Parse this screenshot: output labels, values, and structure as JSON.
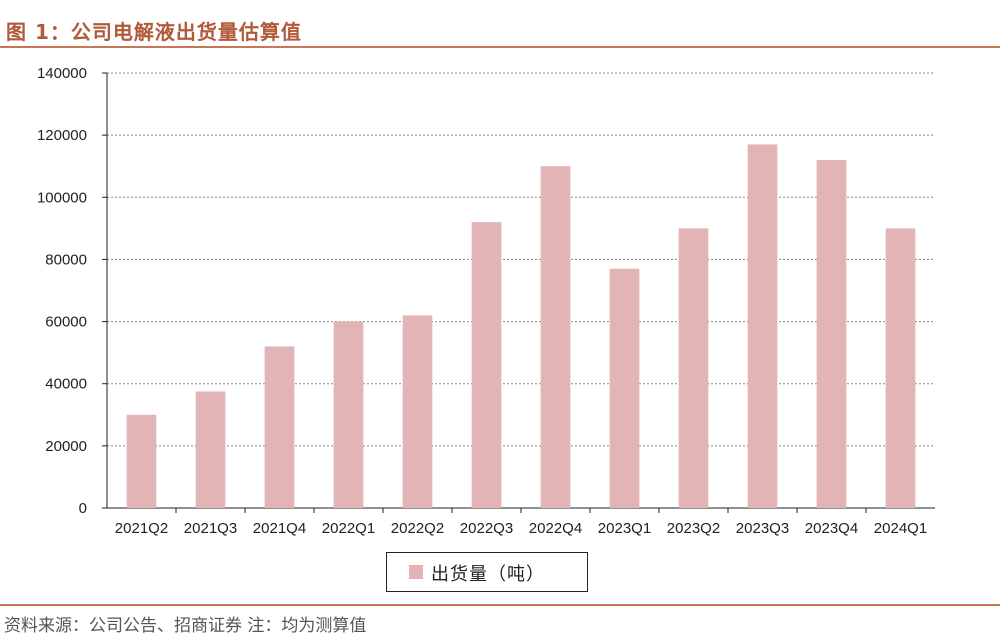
{
  "title": "图 1：公司电解液出货量估算值",
  "source": "资料来源：公司公告、招商证券 注：均为测算值",
  "colors": {
    "bar": "#e2b4b6",
    "accent": "#c9755a",
    "grid": "#888888"
  },
  "chart_data": {
    "type": "bar",
    "categories": [
      "2021Q2",
      "2021Q3",
      "2021Q4",
      "2022Q1",
      "2022Q2",
      "2022Q3",
      "2022Q4",
      "2023Q1",
      "2023Q2",
      "2023Q3",
      "2023Q4",
      "2024Q1"
    ],
    "series": [
      {
        "name": "出货量（吨）",
        "values": [
          30000,
          37500,
          52000,
          60000,
          62000,
          92000,
          110000,
          77000,
          90000,
          117000,
          112000,
          90000
        ]
      }
    ],
    "ylim": [
      0,
      140000
    ],
    "yticks": [
      0,
      20000,
      40000,
      60000,
      80000,
      100000,
      120000,
      140000
    ],
    "grid": true,
    "legend_position": "bottom-center"
  }
}
